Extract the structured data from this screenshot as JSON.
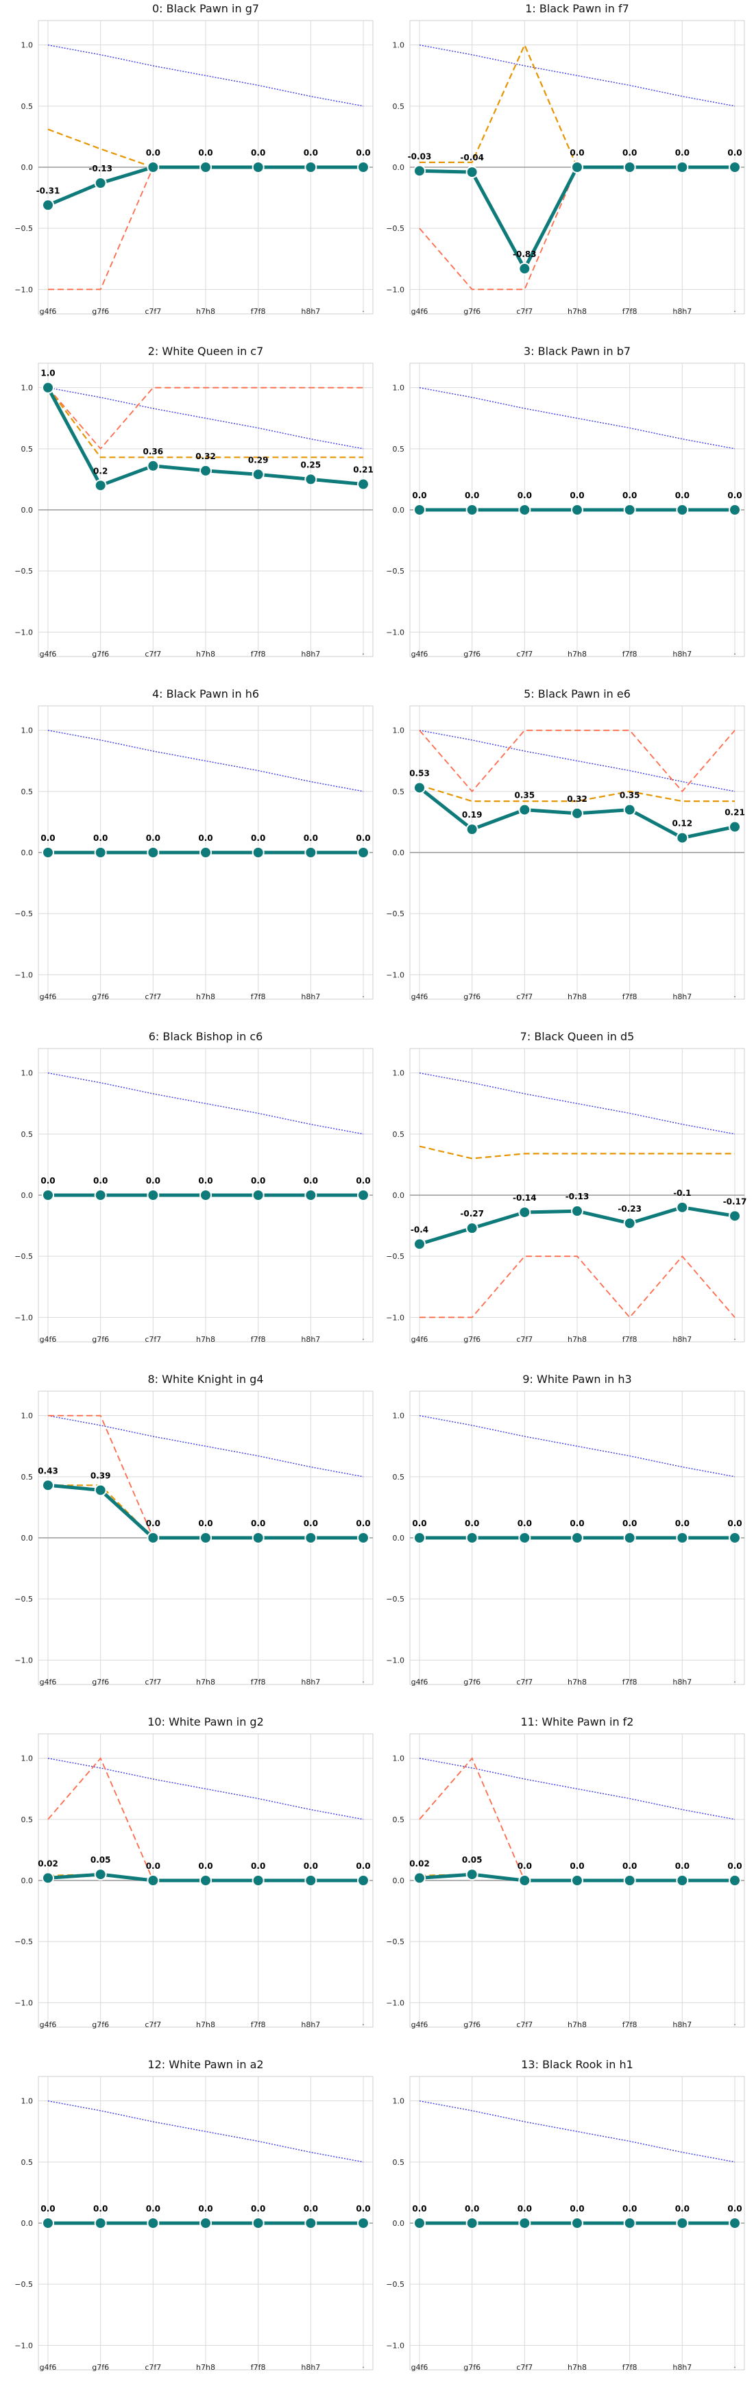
{
  "colors": {
    "main": "#0f7a7a",
    "orange": "#e69500",
    "red": "#ff6b4a",
    "blue": "#3a3ae8",
    "grid": "#d9d9d9",
    "zero": "#9a9a9a"
  },
  "chart_data": {
    "type": "line",
    "x": [
      "g4f6",
      "g7f6",
      "c7f7",
      "h7h8",
      "f7f8",
      "h8h7",
      "·"
    ],
    "xtick_labels": [
      "g4f6",
      "g7f6",
      "c7f7",
      "h7h8",
      "f7f8",
      "h8h7",
      "·"
    ],
    "ylim": [
      -1.2,
      1.2
    ],
    "yticks": [
      1.0,
      0.5,
      0.0,
      -0.5,
      -1.0
    ],
    "ytick_labels": [
      "1.0",
      "0.5",
      "0.0",
      "−0.5",
      "−1.0"
    ],
    "grid": true,
    "panels": [
      {
        "title": "0: Black Pawn in g7",
        "main": [
          -0.31,
          -0.13,
          0.0,
          0.0,
          0.0,
          0.0,
          0.0
        ],
        "labels": [
          "-0.31",
          "-0.13",
          "0.0",
          "0.0",
          "0.0",
          "0.0",
          "0.0"
        ],
        "orange": [
          0.31,
          0.15,
          0.0,
          0.0,
          0.0,
          0.0,
          0.0
        ],
        "red": [
          -1.0,
          -1.0,
          0.0,
          0.0,
          0.0,
          0.0,
          0.0
        ],
        "blue": [
          1.0,
          0.92,
          0.83,
          0.75,
          0.67,
          0.58,
          0.5
        ]
      },
      {
        "title": "1: Black Pawn in f7",
        "main": [
          -0.03,
          -0.04,
          -0.83,
          0.0,
          0.0,
          0.0,
          0.0
        ],
        "labels": [
          "-0.03",
          "-0.04",
          "-0.83",
          "0.0",
          "0.0",
          "0.0",
          "0.0"
        ],
        "orange": [
          0.04,
          0.04,
          1.0,
          0.0,
          0.0,
          0.0,
          0.0
        ],
        "red": [
          -0.5,
          -1.0,
          -1.0,
          0.0,
          0.0,
          0.0,
          0.0
        ],
        "blue": [
          1.0,
          0.92,
          0.83,
          0.75,
          0.67,
          0.58,
          0.5
        ]
      },
      {
        "title": "2: White Queen in c7",
        "main": [
          1.0,
          0.2,
          0.36,
          0.32,
          0.29,
          0.25,
          0.21
        ],
        "labels": [
          "1.0",
          "0.2",
          "0.36",
          "0.32",
          "0.29",
          "0.25",
          "0.21"
        ],
        "orange": [
          1.0,
          0.43,
          0.43,
          0.43,
          0.43,
          0.43,
          0.43
        ],
        "red": [
          1.0,
          0.5,
          1.0,
          1.0,
          1.0,
          1.0,
          1.0
        ],
        "blue": [
          1.0,
          0.92,
          0.83,
          0.75,
          0.67,
          0.58,
          0.5
        ]
      },
      {
        "title": "3: Black Pawn in b7",
        "main": [
          0.0,
          0.0,
          0.0,
          0.0,
          0.0,
          0.0,
          0.0
        ],
        "labels": [
          "0.0",
          "0.0",
          "0.0",
          "0.0",
          "0.0",
          "0.0",
          "0.0"
        ],
        "orange": [
          0.0,
          0.0,
          0.0,
          0.0,
          0.0,
          0.0,
          0.0
        ],
        "red": [
          0.0,
          0.0,
          0.0,
          0.0,
          0.0,
          0.0,
          0.0
        ],
        "blue": [
          1.0,
          0.92,
          0.83,
          0.75,
          0.67,
          0.58,
          0.5
        ]
      },
      {
        "title": "4: Black Pawn in h6",
        "main": [
          0.0,
          0.0,
          0.0,
          0.0,
          0.0,
          0.0,
          0.0
        ],
        "labels": [
          "0.0",
          "0.0",
          "0.0",
          "0.0",
          "0.0",
          "0.0",
          "0.0"
        ],
        "orange": [
          0.0,
          0.0,
          0.0,
          0.0,
          0.0,
          0.0,
          0.0
        ],
        "red": [
          0.0,
          0.0,
          0.0,
          0.0,
          0.0,
          0.0,
          0.0
        ],
        "blue": [
          1.0,
          0.92,
          0.83,
          0.75,
          0.67,
          0.58,
          0.5
        ]
      },
      {
        "title": "5: Black Pawn in e6",
        "main": [
          0.53,
          0.19,
          0.35,
          0.32,
          0.35,
          0.12,
          0.21
        ],
        "labels": [
          "0.53",
          "0.19",
          "0.35",
          "0.32",
          "0.35",
          "0.12",
          "0.21"
        ],
        "orange": [
          0.55,
          0.42,
          0.42,
          0.42,
          0.5,
          0.42,
          0.42
        ],
        "red": [
          1.0,
          0.5,
          1.0,
          1.0,
          1.0,
          0.5,
          1.0
        ],
        "blue": [
          1.0,
          0.92,
          0.83,
          0.75,
          0.67,
          0.58,
          0.5
        ]
      },
      {
        "title": "6: Black Bishop in c6",
        "main": [
          0.0,
          0.0,
          0.0,
          0.0,
          0.0,
          0.0,
          0.0
        ],
        "labels": [
          "0.0",
          "0.0",
          "0.0",
          "0.0",
          "0.0",
          "0.0",
          "0.0"
        ],
        "orange": [
          0.0,
          0.0,
          0.0,
          0.0,
          0.0,
          0.0,
          0.0
        ],
        "red": [
          0.0,
          0.0,
          0.0,
          0.0,
          0.0,
          0.0,
          0.0
        ],
        "blue": [
          1.0,
          0.92,
          0.83,
          0.75,
          0.67,
          0.58,
          0.5
        ]
      },
      {
        "title": "7: Black Queen in d5",
        "main": [
          -0.4,
          -0.27,
          -0.14,
          -0.13,
          -0.23,
          -0.1,
          -0.17
        ],
        "labels": [
          "-0.4",
          "-0.27",
          "-0.14",
          "-0.13",
          "-0.23",
          "-0.1",
          "-0.17"
        ],
        "orange": [
          0.4,
          0.3,
          0.34,
          0.34,
          0.34,
          0.34,
          0.34
        ],
        "red": [
          -1.0,
          -1.0,
          -0.5,
          -0.5,
          -1.0,
          -0.5,
          -1.0
        ],
        "blue": [
          1.0,
          0.92,
          0.83,
          0.75,
          0.67,
          0.58,
          0.5
        ]
      },
      {
        "title": "8: White Knight in g4",
        "main": [
          0.43,
          0.39,
          0.0,
          0.0,
          0.0,
          0.0,
          0.0
        ],
        "labels": [
          "0.43",
          "0.39",
          "0.0",
          "0.0",
          "0.0",
          "0.0",
          "0.0"
        ],
        "orange": [
          0.43,
          0.43,
          0.0,
          0.0,
          0.0,
          0.0,
          0.0
        ],
        "red": [
          1.0,
          1.0,
          0.0,
          0.0,
          0.0,
          0.0,
          0.0
        ],
        "blue": [
          1.0,
          0.92,
          0.83,
          0.75,
          0.67,
          0.58,
          0.5
        ]
      },
      {
        "title": "9: White Pawn in h3",
        "main": [
          0.0,
          0.0,
          0.0,
          0.0,
          0.0,
          0.0,
          0.0
        ],
        "labels": [
          "0.0",
          "0.0",
          "0.0",
          "0.0",
          "0.0",
          "0.0",
          "0.0"
        ],
        "orange": [
          0.0,
          0.0,
          0.0,
          0.0,
          0.0,
          0.0,
          0.0
        ],
        "red": [
          0.0,
          0.0,
          0.0,
          0.0,
          0.0,
          0.0,
          0.0
        ],
        "blue": [
          1.0,
          0.92,
          0.83,
          0.75,
          0.67,
          0.58,
          0.5
        ]
      },
      {
        "title": "10: White Pawn in g2",
        "main": [
          0.02,
          0.05,
          0.0,
          0.0,
          0.0,
          0.0,
          0.0
        ],
        "labels": [
          "0.02",
          "0.05",
          "0.0",
          "0.0",
          "0.0",
          "0.0",
          "0.0"
        ],
        "orange": [
          0.04,
          0.05,
          0.0,
          0.0,
          0.0,
          0.0,
          0.0
        ],
        "red": [
          0.5,
          1.0,
          0.0,
          0.0,
          0.0,
          0.0,
          0.0
        ],
        "blue": [
          1.0,
          0.92,
          0.83,
          0.75,
          0.67,
          0.58,
          0.5
        ]
      },
      {
        "title": "11: White Pawn in f2",
        "main": [
          0.02,
          0.05,
          0.0,
          0.0,
          0.0,
          0.0,
          0.0
        ],
        "labels": [
          "0.02",
          "0.05",
          "0.0",
          "0.0",
          "0.0",
          "0.0",
          "0.0"
        ],
        "orange": [
          0.04,
          0.05,
          0.0,
          0.0,
          0.0,
          0.0,
          0.0
        ],
        "red": [
          0.5,
          1.0,
          0.0,
          0.0,
          0.0,
          0.0,
          0.0
        ],
        "blue": [
          1.0,
          0.92,
          0.83,
          0.75,
          0.67,
          0.58,
          0.5
        ]
      },
      {
        "title": "12: White Pawn in a2",
        "main": [
          0.0,
          0.0,
          0.0,
          0.0,
          0.0,
          0.0,
          0.0
        ],
        "labels": [
          "0.0",
          "0.0",
          "0.0",
          "0.0",
          "0.0",
          "0.0",
          "0.0"
        ],
        "orange": [
          0.0,
          0.0,
          0.0,
          0.0,
          0.0,
          0.0,
          0.0
        ],
        "red": [
          0.0,
          0.0,
          0.0,
          0.0,
          0.0,
          0.0,
          0.0
        ],
        "blue": [
          1.0,
          0.92,
          0.83,
          0.75,
          0.67,
          0.58,
          0.5
        ]
      },
      {
        "title": "13: Black Rook in h1",
        "main": [
          0.0,
          0.0,
          0.0,
          0.0,
          0.0,
          0.0,
          0.0
        ],
        "labels": [
          "0.0",
          "0.0",
          "0.0",
          "0.0",
          "0.0",
          "0.0",
          "0.0"
        ],
        "orange": [
          0.0,
          0.0,
          0.0,
          0.0,
          0.0,
          0.0,
          0.0
        ],
        "red": [
          0.0,
          0.0,
          0.0,
          0.0,
          0.0,
          0.0,
          0.0
        ],
        "blue": [
          1.0,
          0.92,
          0.83,
          0.75,
          0.67,
          0.58,
          0.5
        ]
      }
    ]
  }
}
